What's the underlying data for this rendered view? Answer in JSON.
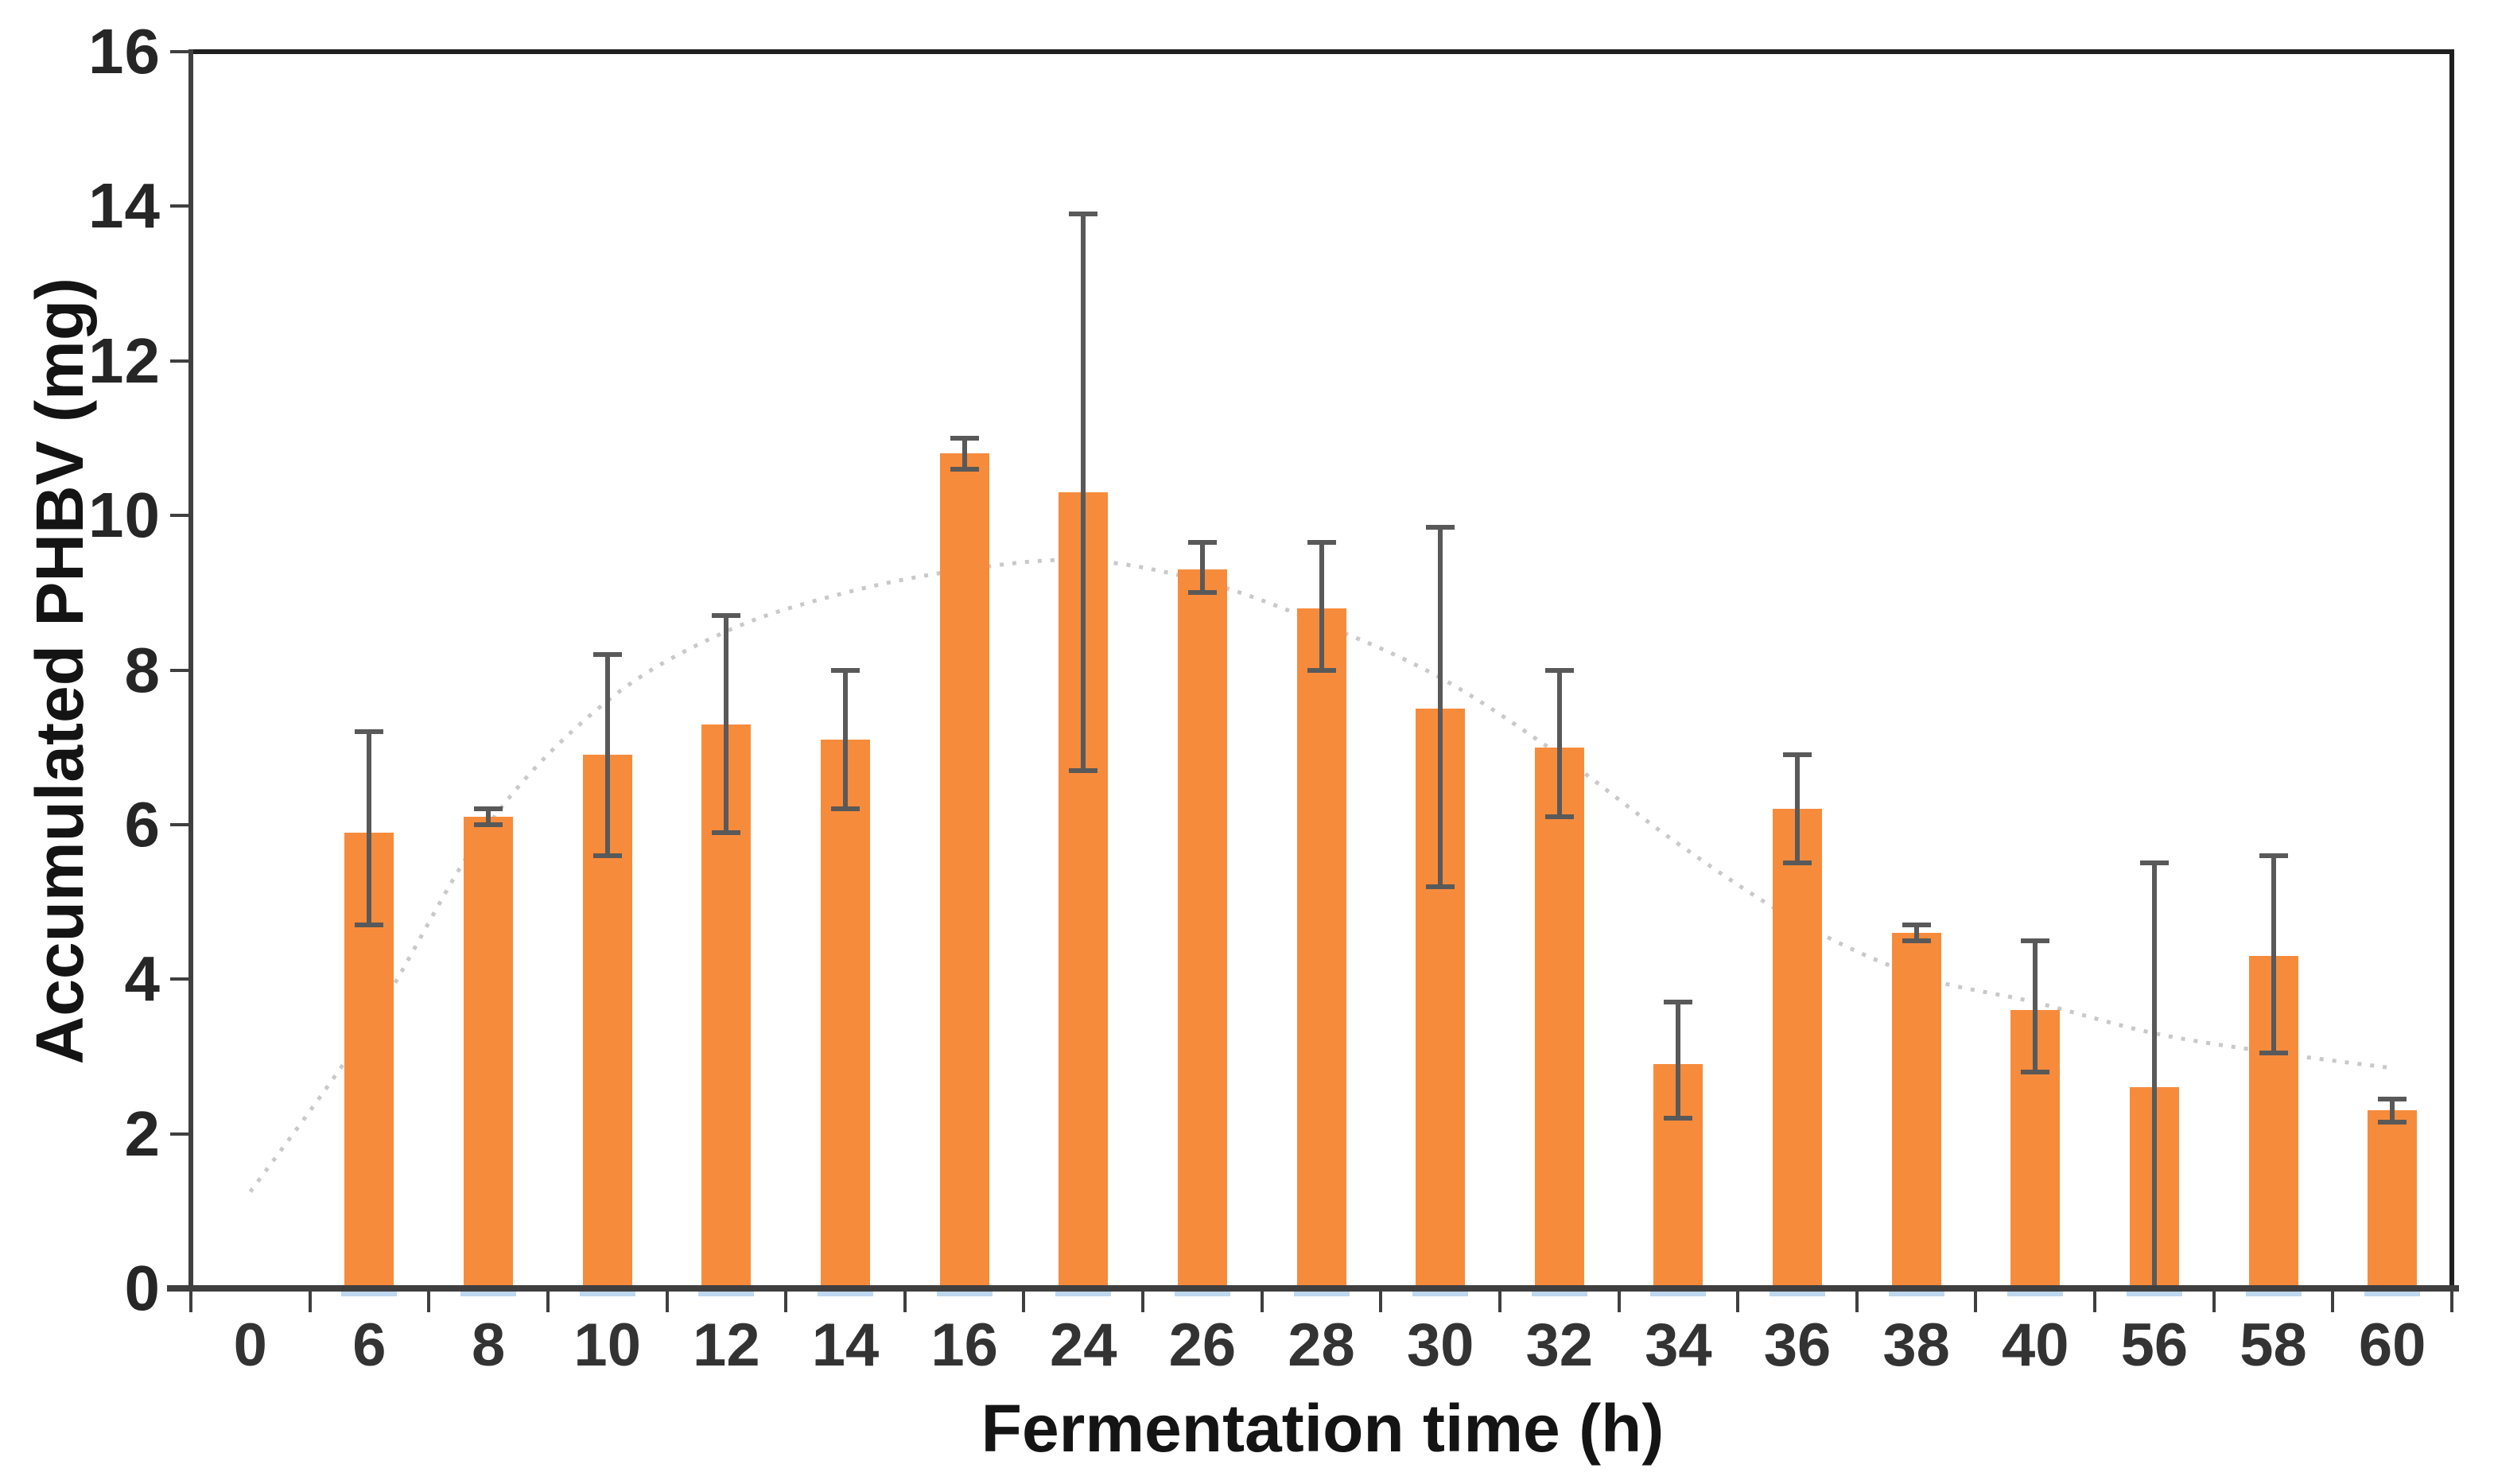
{
  "figure": {
    "background": "#FFFFFF",
    "description": "Bar chart of accumulated PHBV (mg) over fermentation time (h) with error bars and a dotted moving-average trendline"
  },
  "chart_data": {
    "type": "bar",
    "title": "",
    "xlabel": "Fermentation time (h)",
    "ylabel": "Accumulated PHBV (mg)",
    "ylim": [
      0,
      16
    ],
    "yticks": [
      "0",
      "2",
      "4",
      "6",
      "8",
      "10",
      "12",
      "14",
      "16"
    ],
    "grid": false,
    "legend_position": "none",
    "categories": [
      "0",
      "6",
      "8",
      "10",
      "12",
      "14",
      "16",
      "24",
      "26",
      "28",
      "30",
      "32",
      "34",
      "36",
      "38",
      "40",
      "56",
      "58",
      "60"
    ],
    "series": [
      {
        "name": "Accumulated PHBV",
        "values": [
          0,
          5.9,
          6.1,
          6.9,
          7.3,
          7.1,
          10.8,
          10.3,
          9.3,
          8.8,
          7.5,
          7.0,
          2.9,
          6.2,
          4.6,
          3.6,
          2.6,
          4.3,
          2.3
        ],
        "error_low": [
          null,
          4.7,
          6.0,
          5.6,
          5.9,
          6.2,
          10.6,
          6.7,
          9.0,
          8.0,
          5.2,
          6.1,
          2.2,
          5.5,
          4.5,
          2.8,
          0.0,
          3.05,
          2.15
        ],
        "error_high": [
          null,
          7.2,
          6.2,
          8.2,
          8.7,
          8.0,
          11.0,
          13.9,
          9.65,
          9.65,
          9.85,
          8.0,
          3.7,
          6.9,
          4.7,
          4.5,
          5.5,
          5.6,
          2.45
        ]
      }
    ],
    "trendline": {
      "style": "dotted",
      "values_by_slot": [
        1.25,
        3.4,
        6.0,
        7.6,
        8.5,
        9.0,
        9.3,
        9.42,
        9.15,
        8.6,
        7.9,
        6.9,
        5.75,
        4.75,
        4.05,
        3.7,
        3.3,
        3.05,
        2.85
      ]
    }
  },
  "colors": {
    "bar": "#F78B3C",
    "error_bar": "#595959",
    "trendline": "#C9C9C9",
    "axis": "#3F3F3F",
    "frame": "#1F1F1F",
    "tick_text": "#333333",
    "title_text": "#141414",
    "under_bar_line": "#BDD7EE"
  }
}
